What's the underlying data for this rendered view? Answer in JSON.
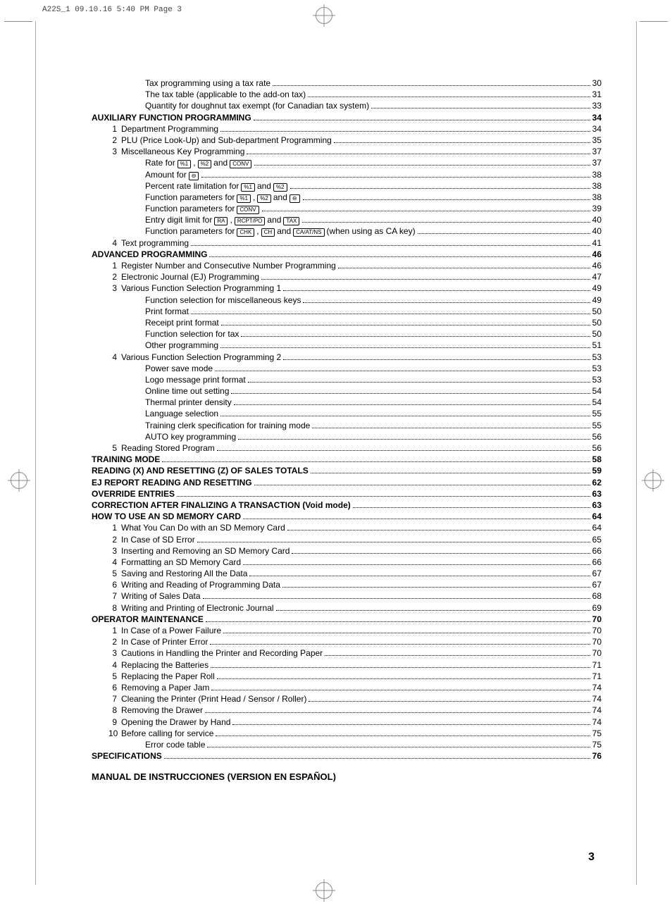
{
  "slug": "A22S_1  09.10.16 5:40 PM  Page 3",
  "page_number": "3",
  "footer": "MANUAL DE INSTRUCCIONES (VERSION EN ESPAÑOL)",
  "keys": {
    "pct1": "%1",
    "pct2": "%2",
    "conv": "CONV",
    "minus": "⊖",
    "ra": "RA",
    "rcptpo": "RCPT/PO",
    "tax": "TAX",
    "chk": "CHK",
    "ch": "CH",
    "caatns": "CA/AT/NS"
  },
  "toc": [
    {
      "indent": 2,
      "title": "Tax programming using a tax rate",
      "page": "30"
    },
    {
      "indent": 2,
      "title": "The tax table (applicable to the add-on tax)",
      "page": "31"
    },
    {
      "indent": 2,
      "title": "Quantity for doughnut tax exempt (for Canadian tax system)",
      "page": "33"
    },
    {
      "indent": 0,
      "bold": true,
      "title": "AUXILIARY FUNCTION PROGRAMMING",
      "page": "34"
    },
    {
      "indent": 1,
      "num": "1",
      "title": "Department Programming",
      "page": "34"
    },
    {
      "indent": 1,
      "num": "2",
      "title": "PLU (Price Look-Up) and Sub-department Programming",
      "page": "35"
    },
    {
      "indent": 1,
      "num": "3",
      "title": "Miscellaneous Key Programming",
      "page": "37"
    },
    {
      "indent": 2,
      "parts": [
        "Rate for ",
        {
          "k": "pct1"
        },
        ", ",
        {
          "k": "pct2"
        },
        " and ",
        {
          "k": "conv"
        }
      ],
      "page": "37"
    },
    {
      "indent": 2,
      "parts": [
        "Amount for ",
        {
          "k": "minus"
        }
      ],
      "page": "38"
    },
    {
      "indent": 2,
      "parts": [
        "Percent rate limitation for ",
        {
          "k": "pct1"
        },
        " and ",
        {
          "k": "pct2"
        }
      ],
      "page": "38"
    },
    {
      "indent": 2,
      "parts": [
        "Function parameters for ",
        {
          "k": "pct1"
        },
        ", ",
        {
          "k": "pct2"
        },
        " and ",
        {
          "k": "minus"
        }
      ],
      "page": "38"
    },
    {
      "indent": 2,
      "parts": [
        "Function parameters for ",
        {
          "k": "conv"
        }
      ],
      "page": "39"
    },
    {
      "indent": 2,
      "parts": [
        "Entry digit limit for ",
        {
          "k": "ra"
        },
        ", ",
        {
          "k": "rcptpo"
        },
        " and ",
        {
          "k": "tax"
        }
      ],
      "page": "40"
    },
    {
      "indent": 2,
      "parts": [
        "Function parameters for ",
        {
          "k": "chk"
        },
        ", ",
        {
          "k": "ch"
        },
        " and ",
        {
          "k": "caatns"
        },
        " (when using as CA key)"
      ],
      "page": "40"
    },
    {
      "indent": 1,
      "num": "4",
      "title": "Text programming",
      "page": "41"
    },
    {
      "indent": 0,
      "bold": true,
      "title": "ADVANCED PROGRAMMING",
      "page": "46"
    },
    {
      "indent": 1,
      "num": "1",
      "title": "Register Number and Consecutive Number Programming",
      "page": "46"
    },
    {
      "indent": 1,
      "num": "2",
      "title": "Electronic Journal (EJ) Programming",
      "page": "47"
    },
    {
      "indent": 1,
      "num": "3",
      "title": "Various Function Selection Programming 1",
      "page": "49"
    },
    {
      "indent": 2,
      "title": "Function selection for miscellaneous keys",
      "page": "49"
    },
    {
      "indent": 2,
      "title": "Print format",
      "page": "50"
    },
    {
      "indent": 2,
      "title": "Receipt print format",
      "page": "50"
    },
    {
      "indent": 2,
      "title": "Function selection for tax",
      "page": "50"
    },
    {
      "indent": 2,
      "title": "Other programming",
      "page": "51"
    },
    {
      "indent": 1,
      "num": "4",
      "title": "Various Function Selection Programming 2",
      "page": "53"
    },
    {
      "indent": 2,
      "title": "Power save mode",
      "page": "53"
    },
    {
      "indent": 2,
      "title": "Logo message print format",
      "page": "53"
    },
    {
      "indent": 2,
      "title": "Online time out setting",
      "page": "54"
    },
    {
      "indent": 2,
      "title": "Thermal printer density",
      "page": "54"
    },
    {
      "indent": 2,
      "title": "Language selection",
      "page": "55"
    },
    {
      "indent": 2,
      "title": "Training clerk specification for training mode",
      "page": "55"
    },
    {
      "indent": 2,
      "title": "AUTO key programming",
      "page": "56"
    },
    {
      "indent": 1,
      "num": "5",
      "title": "Reading Stored Program",
      "page": "56"
    },
    {
      "indent": 0,
      "bold": true,
      "title": "TRAINING MODE",
      "page": "58"
    },
    {
      "indent": 0,
      "bold": true,
      "title": "READING (X) AND RESETTING (Z) OF SALES TOTALS",
      "page": "59"
    },
    {
      "indent": 0,
      "bold": true,
      "title": "EJ REPORT READING AND RESETTING",
      "page": "62"
    },
    {
      "indent": 0,
      "bold": true,
      "title": "OVERRIDE ENTRIES",
      "page": "63"
    },
    {
      "indent": 0,
      "bold": true,
      "title": "CORRECTION AFTER FINALIZING A TRANSACTION (Void mode)",
      "page": "63"
    },
    {
      "indent": 0,
      "bold": true,
      "title": "HOW TO USE AN SD MEMORY CARD",
      "page": "64"
    },
    {
      "indent": 1,
      "num": "1",
      "title": "What You Can Do with an SD Memory Card",
      "page": "64"
    },
    {
      "indent": 1,
      "num": "2",
      "title": "In Case of SD Error",
      "page": "65"
    },
    {
      "indent": 1,
      "num": "3",
      "title": "Inserting and Removing an SD Memory Card",
      "page": "66"
    },
    {
      "indent": 1,
      "num": "4",
      "title": "Formatting an SD Memory Card",
      "page": "66"
    },
    {
      "indent": 1,
      "num": "5",
      "title": "Saving and Restoring All the Data",
      "page": "67"
    },
    {
      "indent": 1,
      "num": "6",
      "title": "Writing and Reading of Programming Data",
      "page": "67"
    },
    {
      "indent": 1,
      "num": "7",
      "title": "Writing of Sales Data",
      "page": "68"
    },
    {
      "indent": 1,
      "num": "8",
      "title": "Writing and Printing of Electronic Journal",
      "page": "69"
    },
    {
      "indent": 0,
      "bold": true,
      "title": "OPERATOR MAINTENANCE",
      "page": "70"
    },
    {
      "indent": 1,
      "num": "1",
      "title": "In Case of a Power Failure",
      "page": "70"
    },
    {
      "indent": 1,
      "num": "2",
      "title": "In Case of Printer Error",
      "page": "70"
    },
    {
      "indent": 1,
      "num": "3",
      "title": "Cautions in Handling the Printer and Recording Paper",
      "page": "70"
    },
    {
      "indent": 1,
      "num": "4",
      "title": "Replacing the Batteries",
      "page": "71"
    },
    {
      "indent": 1,
      "num": "5",
      "title": "Replacing the Paper Roll",
      "page": "71"
    },
    {
      "indent": 1,
      "num": "6",
      "title": "Removing a Paper Jam",
      "page": "74"
    },
    {
      "indent": 1,
      "num": "7",
      "title": "Cleaning the Printer (Print Head / Sensor / Roller)",
      "page": "74"
    },
    {
      "indent": 1,
      "num": "8",
      "title": "Removing the Drawer",
      "page": "74"
    },
    {
      "indent": 1,
      "num": "9",
      "title": "Opening the Drawer by Hand",
      "page": "74"
    },
    {
      "indent": 1,
      "num": "10",
      "title": "Before calling for service",
      "page": "75"
    },
    {
      "indent": 2,
      "title": "Error code table",
      "page": "75"
    },
    {
      "indent": 0,
      "bold": true,
      "title": "SPECIFICATIONS",
      "page": "76"
    }
  ]
}
